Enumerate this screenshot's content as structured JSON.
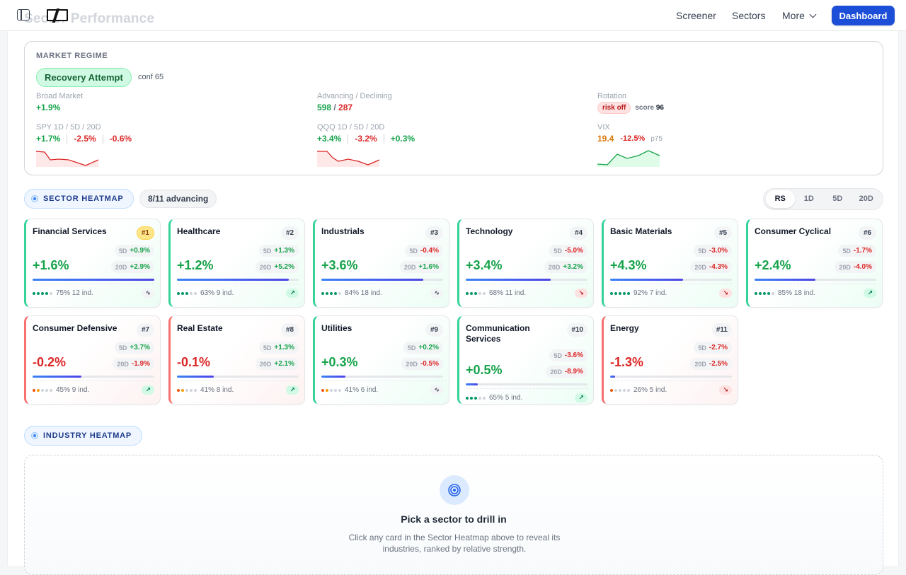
{
  "header": {
    "ghost_title": "Sector Performance",
    "nav": [
      "Screener",
      "Sectors",
      "More"
    ],
    "dashboard_label": "Dashboard"
  },
  "regime": {
    "label": "MARKET REGIME",
    "badge": "Recovery Attempt",
    "conf": "conf 65",
    "broad_label": "Broad Market",
    "broad_value": "+1.9%",
    "adv_label": "Advancing / Declining",
    "adv_value": "598",
    "adv_slash": " / ",
    "dec_value": "287",
    "rotation_label": "Rotation",
    "rotation_badge": "risk off",
    "score_label": "score",
    "score_value": "96",
    "spy_label": "SPY 1D / 5D / 20D",
    "spy": [
      "+1.7%",
      "-2.5%",
      "-0.6%"
    ],
    "qqq_label": "QQQ 1D / 5D / 20D",
    "qqq": [
      "+3.4%",
      "-3.2%",
      "+0.3%"
    ],
    "vix_label": "VIX",
    "vix_value": "19.4",
    "vix_change": "-12.5%",
    "vix_pct": "p75"
  },
  "sector_heatmap": {
    "title": "SECTOR HEATMAP",
    "advancing": "8/11 advancing",
    "tabs": [
      "RS",
      "1D",
      "5D",
      "20D"
    ],
    "active_tab": "RS"
  },
  "sectors": [
    {
      "name": "Financial Services",
      "rank": "#1",
      "d5": "+0.9%",
      "d20": "+2.9%",
      "pct": "+1.6%",
      "strength": 1.0,
      "breadth": "75%",
      "ind": "12 ind.",
      "dots": 4,
      "trend": "flat"
    },
    {
      "name": "Healthcare",
      "rank": "#2",
      "d5": "+1.3%",
      "d20": "+5.2%",
      "pct": "+1.2%",
      "strength": 0.92,
      "breadth": "63%",
      "ind": "9 ind.",
      "dots": 3,
      "trend": "up"
    },
    {
      "name": "Industrials",
      "rank": "#3",
      "d5": "-0.4%",
      "d20": "+1.6%",
      "pct": "+3.6%",
      "strength": 0.84,
      "breadth": "84%",
      "ind": "18 ind.",
      "dots": 4,
      "trend": "flat"
    },
    {
      "name": "Technology",
      "rank": "#4",
      "d5": "-5.0%",
      "d20": "+3.2%",
      "pct": "+3.4%",
      "strength": 0.7,
      "breadth": "68%",
      "ind": "11 ind.",
      "dots": 3,
      "trend": "down"
    },
    {
      "name": "Basic Materials",
      "rank": "#5",
      "d5": "-3.0%",
      "d20": "-4.3%",
      "pct": "+4.3%",
      "strength": 0.6,
      "breadth": "92%",
      "ind": "7 ind.",
      "dots": 5,
      "trend": "down"
    },
    {
      "name": "Consumer Cyclical",
      "rank": "#6",
      "d5": "-1.7%",
      "d20": "-4.0%",
      "pct": "+2.4%",
      "strength": 0.5,
      "breadth": "85%",
      "ind": "18 ind.",
      "dots": 4,
      "trend": "up"
    },
    {
      "name": "Consumer Defensive",
      "rank": "#7",
      "d5": "+3.7%",
      "d20": "-1.9%",
      "pct": "-0.2%",
      "strength": 0.4,
      "breadth": "45%",
      "ind": "9 ind.",
      "dots": 2,
      "trend": "up"
    },
    {
      "name": "Real Estate",
      "rank": "#8",
      "d5": "+1.3%",
      "d20": "+2.1%",
      "pct": "-0.1%",
      "strength": 0.3,
      "breadth": "41%",
      "ind": "8 ind.",
      "dots": 2,
      "trend": "up"
    },
    {
      "name": "Utilities",
      "rank": "#9",
      "d5": "+0.2%",
      "d20": "-0.5%",
      "pct": "+0.3%",
      "strength": 0.2,
      "breadth": "41%",
      "ind": "6 ind.",
      "dots": 2,
      "trend": "flat"
    },
    {
      "name": "Communication Services",
      "rank": "#10",
      "d5": "-3.6%",
      "d20": "-8.9%",
      "pct": "+0.5%",
      "strength": 0.1,
      "breadth": "65%",
      "ind": "5 ind.",
      "dots": 3,
      "trend": "up"
    },
    {
      "name": "Energy",
      "rank": "#11",
      "d5": "-2.7%",
      "d20": "-2.5%",
      "pct": "-1.3%",
      "strength": 0.04,
      "breadth": "26%",
      "ind": "5 ind.",
      "dots": 1,
      "trend": "down"
    }
  ],
  "industry_heatmap": {
    "title": "INDUSTRY HEATMAP",
    "empty_title": "Pick a sector to drill in",
    "empty_desc": "Click any card in the Sector Heatmap above to reveal its industries, ranked by relative strength."
  },
  "colors": {
    "accent": "#1d4ed8",
    "positive": "#16a34a",
    "negative": "#dc2626",
    "warning": "#d97706"
  }
}
